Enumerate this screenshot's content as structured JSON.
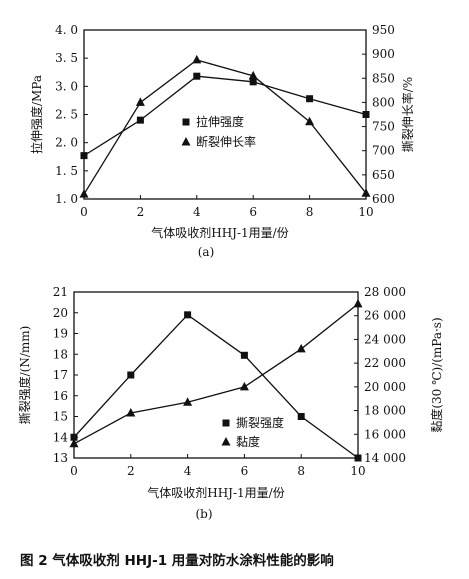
{
  "figure_caption": "图 2   气体吸收剂 HHJ-1 用量对防水涂料性能的影响",
  "chart_data": [
    {
      "type": "line",
      "panel_label": "(a)",
      "x": [
        0,
        2,
        4,
        6,
        8,
        10
      ],
      "xlabel": "气体吸收剂HHJ-1用量/份",
      "xlim": [
        0,
        10
      ],
      "x_ticks": [
        "0",
        "2",
        "4",
        "6",
        "8",
        "10"
      ],
      "ylabel": "拉伸强度/MPa",
      "ylim": [
        1.0,
        4.0
      ],
      "y_ticks": [
        "1. 0",
        "1. 5",
        "2. 0",
        "2. 5",
        "3. 0",
        "3. 5",
        "4. 0"
      ],
      "y2label": "撕裂伸长率/%",
      "y2lim": [
        600,
        950
      ],
      "y2_ticks": [
        "600",
        "650",
        "700",
        "750",
        "800",
        "850",
        "900",
        "950"
      ],
      "series": [
        {
          "name": "拉伸强度",
          "marker": "square",
          "axis": "left",
          "values": [
            1.77,
            2.4,
            3.18,
            3.08,
            2.78,
            2.5
          ]
        },
        {
          "name": "断裂伸长率",
          "marker": "triangle",
          "axis": "right",
          "values": [
            610,
            800,
            888,
            855,
            760,
            612
          ]
        }
      ],
      "legend_position": "center-right",
      "grid": false
    },
    {
      "type": "line",
      "panel_label": "(b)",
      "x": [
        0,
        2,
        4,
        6,
        8,
        10
      ],
      "xlabel": "气体吸收剂HHJ-1用量/份",
      "xlim": [
        0,
        10
      ],
      "x_ticks": [
        "0",
        "2",
        "4",
        "6",
        "8",
        "10"
      ],
      "ylabel": "撕裂强度/(N/mm)",
      "ylim": [
        13,
        21
      ],
      "y_ticks": [
        "13",
        "14",
        "15",
        "16",
        "17",
        "18",
        "19",
        "20",
        "21"
      ],
      "y2label": "黏度(30 ℃)/(mPa·s)",
      "y2lim": [
        14000,
        28000
      ],
      "y2_ticks": [
        "14 000",
        "16 000",
        "18 000",
        "20 000",
        "22 000",
        "24 000",
        "26 000",
        "28 000"
      ],
      "series": [
        {
          "name": "撕裂强度",
          "marker": "square",
          "axis": "left",
          "values": [
            14.0,
            17.0,
            19.9,
            17.95,
            15.0,
            13.0
          ]
        },
        {
          "name": "黏度",
          "marker": "triangle",
          "axis": "right",
          "values": [
            15200,
            17800,
            18700,
            20000,
            23200,
            27000
          ]
        }
      ],
      "legend_position": "bottom-center",
      "grid": false
    }
  ]
}
